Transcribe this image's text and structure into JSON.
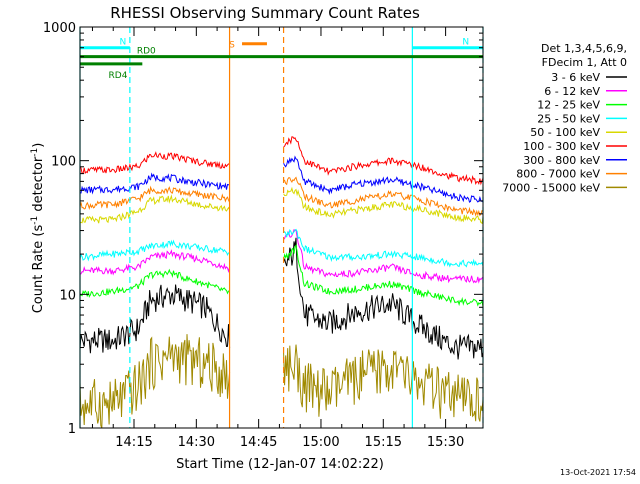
{
  "chart_data": {
    "type": "line",
    "title": "RHESSI Observing Summary Count Rates",
    "xlabel": "Start Time (12-Jan-07 14:02:22)",
    "ylabel": "Count Rate (s⁻¹ detector⁻¹)",
    "ylabel_parts": {
      "pre": "Count Rate (s",
      "sup1": "-1",
      "mid": " detector",
      "sup2": "-1",
      "post": ")"
    },
    "y_scale": "log",
    "ylim": [
      1,
      1000
    ],
    "xlim": [
      "14:02",
      "15:39"
    ],
    "x_ticks": [
      "14:15",
      "14:30",
      "14:45",
      "15:00",
      "15:15",
      "15:30"
    ],
    "y_ticks": [
      "1",
      "10",
      "100",
      "1000"
    ],
    "timestamp": "13-Oct-2021 17:54",
    "legend_header": [
      "Det 1,3,4,5,6,9,",
      "FDecim 1, Att 0"
    ],
    "gaps": [
      [
        "14:38",
        "14:51"
      ]
    ],
    "series": [
      {
        "name": "3 - 6 keV",
        "color": "#000000",
        "minutes": [
          0,
          8,
          14,
          17,
          22,
          26,
          30,
          35,
          38,
          52,
          54,
          60,
          67,
          75,
          81,
          90,
          97
        ],
        "values": [
          4.5,
          4.5,
          5.5,
          9,
          10,
          9,
          8,
          5,
          4.5,
          22,
          7,
          6,
          7.5,
          8.5,
          6,
          4,
          4
        ]
      },
      {
        "name": "6 - 12 keV",
        "color": "#ff00ff",
        "minutes": [
          0,
          8,
          14,
          17,
          22,
          26,
          30,
          35,
          38,
          52,
          54,
          60,
          67,
          75,
          81,
          90,
          97
        ],
        "values": [
          15,
          15,
          16,
          19,
          20,
          19,
          18,
          16,
          15,
          30,
          16,
          14,
          14.5,
          16,
          14,
          13,
          13
        ]
      },
      {
        "name": "12 - 25 keV",
        "color": "#00ff00",
        "minutes": [
          0,
          8,
          14,
          17,
          22,
          26,
          30,
          35,
          38,
          52,
          54,
          60,
          67,
          75,
          81,
          90,
          97
        ],
        "values": [
          10,
          10.5,
          11.5,
          14,
          14.5,
          13,
          12,
          10.5,
          10,
          22,
          12,
          10.5,
          11,
          12,
          10.5,
          9,
          8.5
        ]
      },
      {
        "name": "25 - 50 keV",
        "color": "#00ffff",
        "minutes": [
          0,
          8,
          14,
          17,
          22,
          26,
          30,
          35,
          38,
          52,
          54,
          60,
          67,
          75,
          81,
          90,
          97
        ],
        "values": [
          19,
          20,
          21,
          23,
          24,
          23,
          22,
          21,
          20,
          30,
          22,
          19,
          19,
          20,
          19,
          17,
          17
        ]
      },
      {
        "name": "50 - 100 keV",
        "color": "#d8d800",
        "minutes": [
          0,
          8,
          14,
          17,
          22,
          26,
          30,
          35,
          38,
          52,
          54,
          60,
          67,
          75,
          81,
          90,
          97
        ],
        "values": [
          36,
          36,
          42,
          50,
          52,
          49,
          46,
          44,
          43,
          60,
          45,
          39,
          43,
          47,
          44,
          38,
          36
        ]
      },
      {
        "name": "100 - 300 keV",
        "color": "#ff0000",
        "minutes": [
          0,
          8,
          14,
          17,
          22,
          26,
          30,
          35,
          38,
          52,
          54,
          60,
          67,
          75,
          81,
          90,
          97
        ],
        "values": [
          85,
          85,
          90,
          110,
          108,
          102,
          96,
          92,
          90,
          150,
          100,
          82,
          92,
          100,
          92,
          75,
          70
        ]
      },
      {
        "name": "300 - 800 keV",
        "color": "#0000ff",
        "minutes": [
          0,
          8,
          14,
          17,
          22,
          26,
          30,
          35,
          38,
          52,
          54,
          60,
          67,
          75,
          81,
          90,
          97
        ],
        "values": [
          60,
          61,
          64,
          75,
          74,
          70,
          67,
          64,
          62,
          105,
          70,
          60,
          67,
          72,
          65,
          54,
          50
        ]
      },
      {
        "name": "800 - 7000 keV",
        "color": "#ff8000",
        "minutes": [
          0,
          8,
          14,
          17,
          22,
          26,
          30,
          35,
          38,
          52,
          54,
          60,
          67,
          75,
          81,
          90,
          97
        ],
        "values": [
          46,
          47,
          52,
          60,
          60,
          57,
          55,
          52,
          50,
          75,
          54,
          46,
          51,
          56,
          52,
          43,
          40
        ]
      },
      {
        "name": "7000 - 15000 keV",
        "color": "#a08a00",
        "minutes": [
          0,
          8,
          14,
          17,
          22,
          26,
          30,
          35,
          38,
          52,
          54,
          60,
          67,
          75,
          81,
          90,
          97
        ],
        "values": [
          1.5,
          1.5,
          2,
          3,
          3.5,
          3.2,
          3,
          2.5,
          2,
          3,
          2,
          1.8,
          2.4,
          2.8,
          2.2,
          1.6,
          1.6
        ]
      }
    ],
    "annotations": [
      {
        "label": "S",
        "color": "#ff8000",
        "start": "14:41",
        "end": "14:47",
        "level": 750
      },
      {
        "label": "N",
        "color": "#00ffff",
        "start": "14:02",
        "end": "14:14",
        "level": 700
      },
      {
        "label": "N",
        "color": "#00ffff",
        "start": "15:22",
        "end": "15:39",
        "level": 700
      },
      {
        "label": "RD0",
        "color": "#008000",
        "start": "14:02",
        "end": "15:39",
        "level": 600
      },
      {
        "label": "RD4",
        "color": "#008000",
        "start": "14:02",
        "end": "14:17",
        "level": 530
      }
    ],
    "vlines": [
      {
        "time": "14:02",
        "color": "#00ffff",
        "style": "solid"
      },
      {
        "time": "14:14",
        "color": "#00ffff",
        "style": "dashed"
      },
      {
        "time": "14:38",
        "color": "#ff8000",
        "style": "solid"
      },
      {
        "time": "14:51",
        "color": "#ff8000",
        "style": "dashed"
      },
      {
        "time": "15:22",
        "color": "#00ffff",
        "style": "solid"
      },
      {
        "time": "15:39",
        "color": "#00ffff",
        "style": "dashed"
      }
    ]
  }
}
